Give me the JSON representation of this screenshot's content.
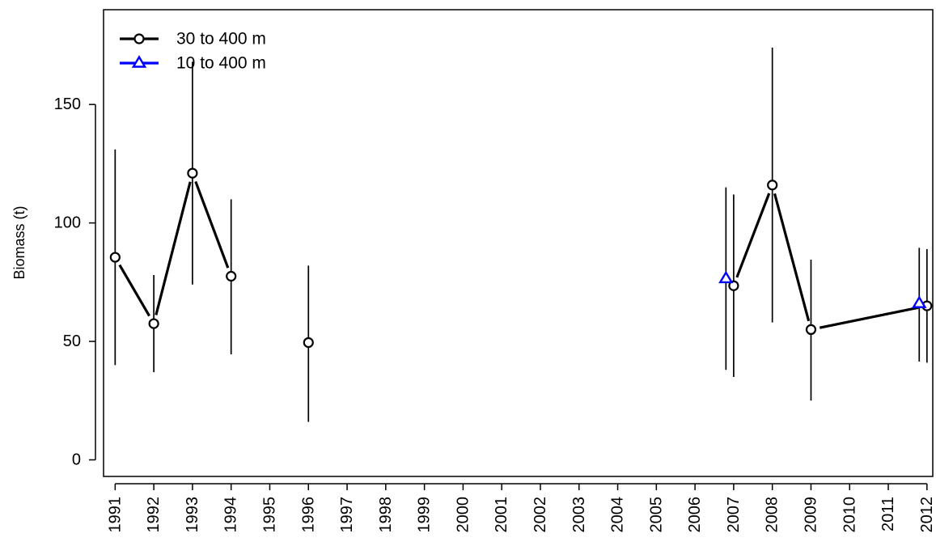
{
  "chart_data": {
    "type": "line",
    "title": "",
    "xlabel": "",
    "ylabel": "Biomass (t)",
    "xlim": [
      1990.7,
      2012.15
    ],
    "ylim": [
      -7,
      190
    ],
    "x_ticks": [
      1991,
      1992,
      1993,
      1994,
      1995,
      1996,
      1997,
      1998,
      1999,
      2000,
      2001,
      2002,
      2003,
      2004,
      2005,
      2006,
      2007,
      2008,
      2009,
      2010,
      2011,
      2012
    ],
    "y_ticks": [
      0,
      50,
      100,
      150
    ],
    "grid": false,
    "legend": {
      "position": "top-left"
    },
    "series": [
      {
        "name": "30 to 400 m",
        "color": "#000000",
        "marker": "circle",
        "segments": [
          [
            {
              "x": 1991,
              "y": 85.5,
              "lo": 40,
              "hi": 131
            },
            {
              "x": 1992,
              "y": 57.5,
              "lo": 37,
              "hi": 78
            },
            {
              "x": 1993,
              "y": 121,
              "lo": 74,
              "hi": 168
            },
            {
              "x": 1994,
              "y": 77.5,
              "lo": 44.5,
              "hi": 110
            }
          ],
          [
            {
              "x": 1996,
              "y": 49.5,
              "lo": 16,
              "hi": 82
            }
          ],
          [
            {
              "x": 2007,
              "y": 73.5,
              "lo": 35,
              "hi": 112
            },
            {
              "x": 2008,
              "y": 116,
              "lo": 58,
              "hi": 174
            },
            {
              "x": 2009,
              "y": 55,
              "lo": 25,
              "hi": 84.5
            },
            {
              "x": 2012,
              "y": 65,
              "lo": 41,
              "hi": 89
            }
          ]
        ]
      },
      {
        "name": "10 to 400 m",
        "color": "#0000ff",
        "marker": "triangle",
        "segments": [
          [
            {
              "x": 2006.8,
              "y": 76.5,
              "lo": 38,
              "hi": 115
            }
          ],
          [
            {
              "x": 2011.8,
              "y": 66,
              "lo": 41.5,
              "hi": 89.5
            }
          ]
        ]
      }
    ]
  }
}
